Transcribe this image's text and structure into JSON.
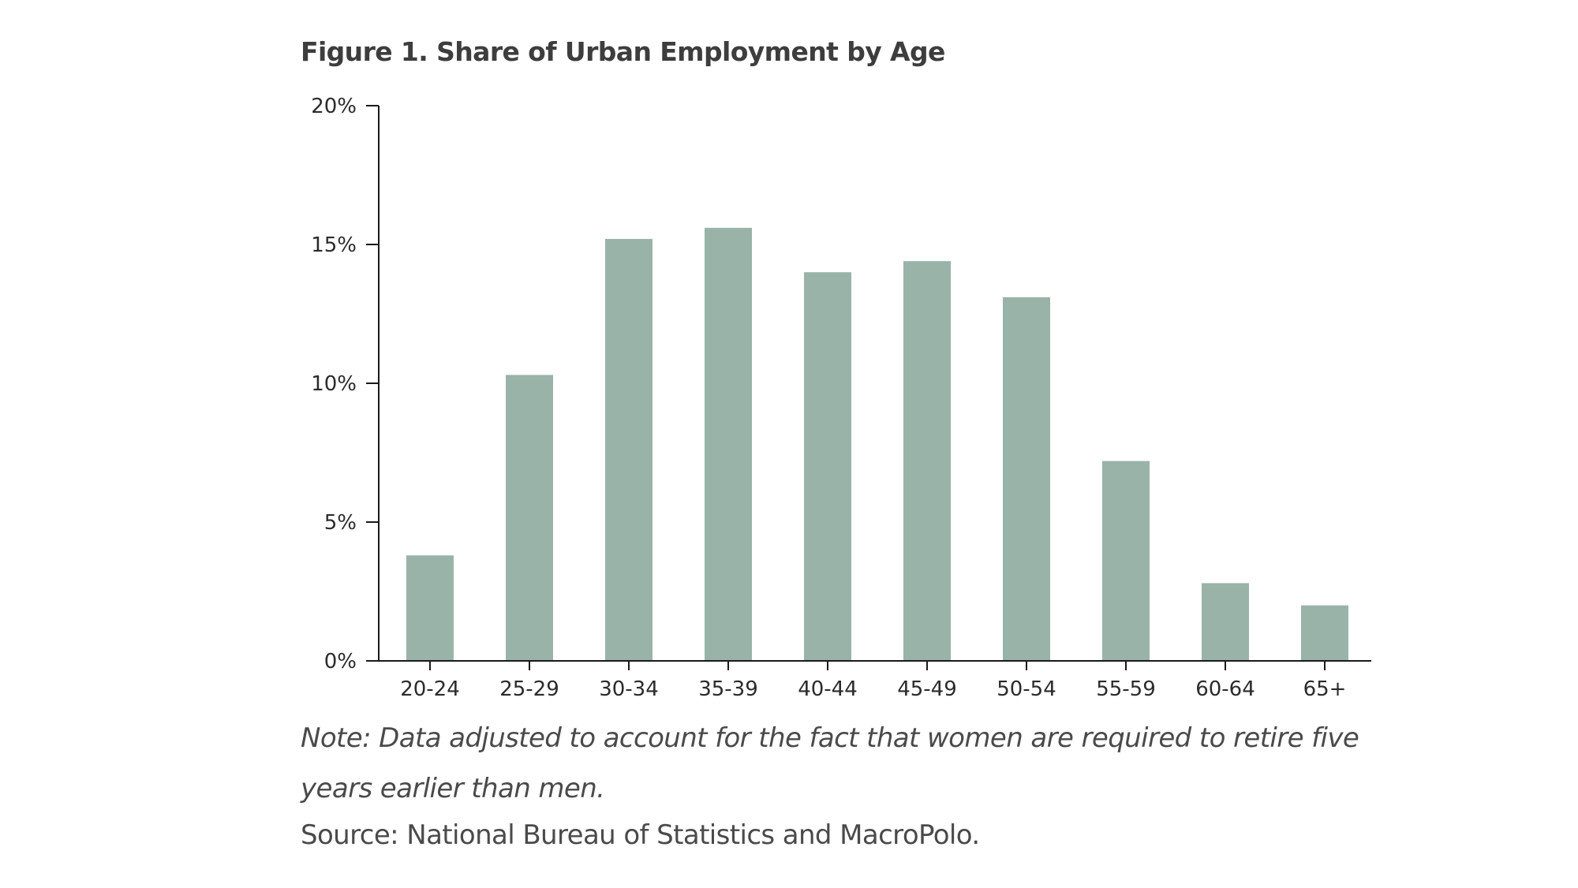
{
  "figure": {
    "title": "Figure 1. Share of Urban Employment by Age",
    "note": "Note: Data adjusted to account for the fact that women are required to retire five years earlier than men.",
    "source": "Source: National Bureau of Statistics and MacroPolo."
  },
  "chart_data": {
    "type": "bar",
    "title": "Figure 1. Share of Urban Employment by Age",
    "xlabel": "",
    "ylabel": "",
    "categories": [
      "20-24",
      "25-29",
      "30-34",
      "35-39",
      "40-44",
      "45-49",
      "50-54",
      "55-59",
      "60-64",
      "65+"
    ],
    "values": [
      3.8,
      10.3,
      15.2,
      15.6,
      14.0,
      14.4,
      13.1,
      7.2,
      2.8,
      2.0
    ],
    "ylim": [
      0,
      20
    ],
    "yticks": [
      0,
      5,
      10,
      15,
      20
    ],
    "ytick_labels": [
      "0%",
      "5%",
      "10%",
      "15%",
      "20%"
    ],
    "unit": "%",
    "grid": false,
    "legend": "none",
    "bar_color": "#9ab3a8",
    "axis_color": "#1a1a1a"
  }
}
